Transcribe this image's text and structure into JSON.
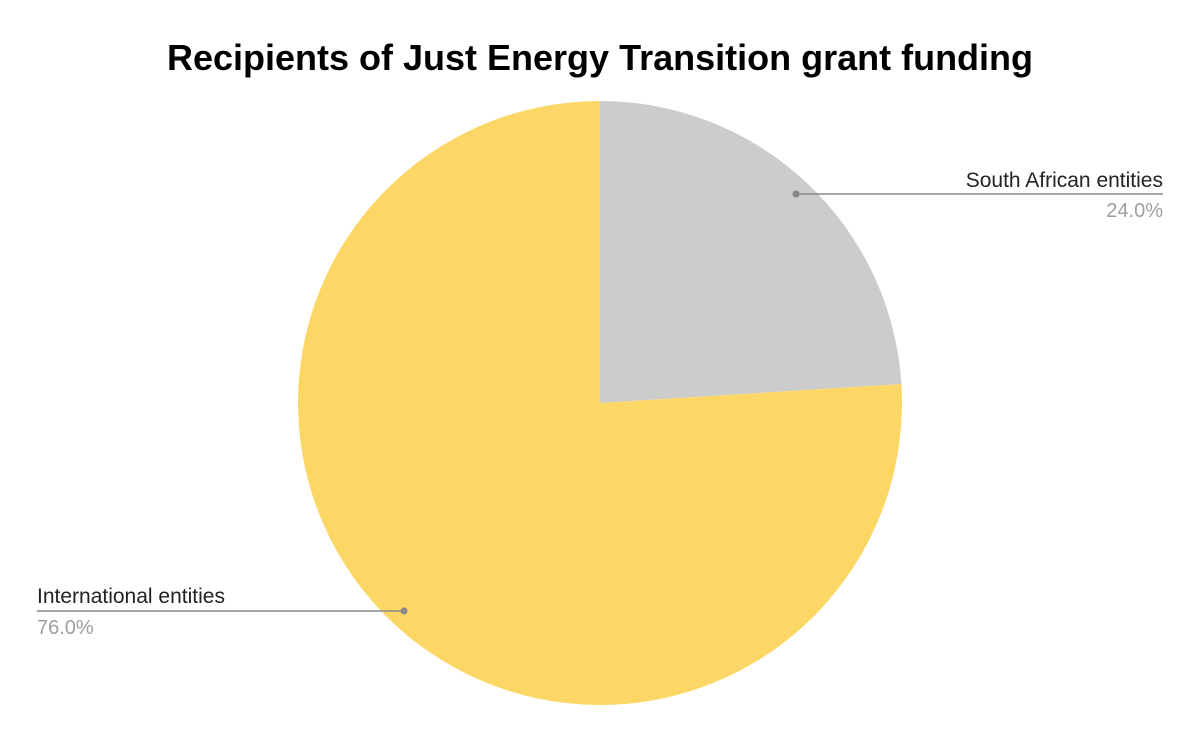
{
  "chart_data": {
    "type": "pie",
    "title": "Recipients of Just Energy Transition grant funding",
    "slices": [
      {
        "label": "South African entities",
        "value": 24.0,
        "value_label": "24.0%",
        "color": "#cccccc"
      },
      {
        "label": "International entities",
        "value": 76.0,
        "value_label": "76.0%",
        "color": "#fdd766"
      }
    ]
  }
}
